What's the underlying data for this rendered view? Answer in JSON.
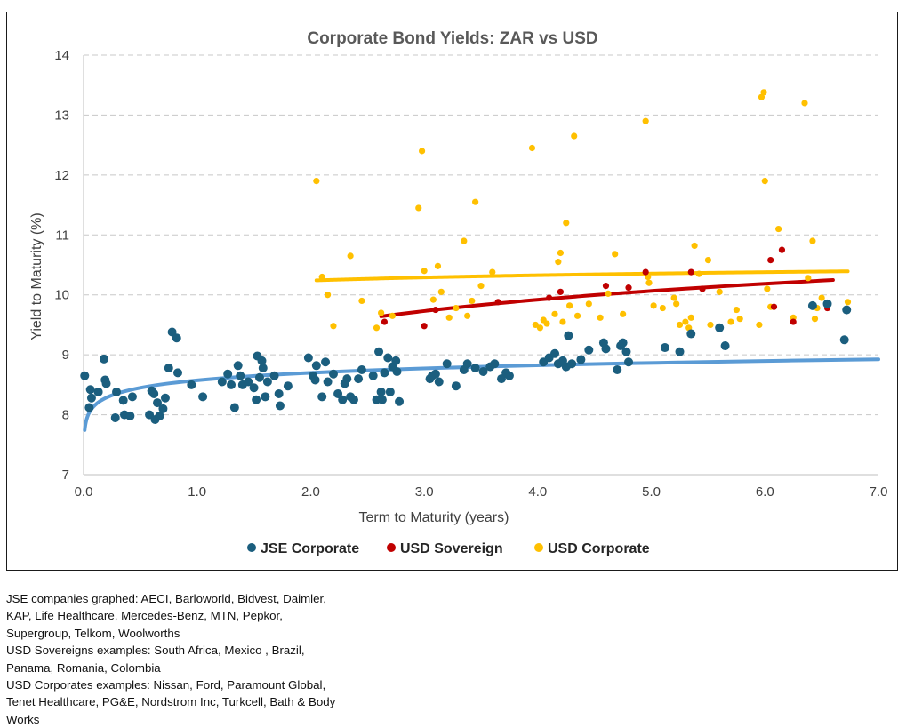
{
  "chart_data": {
    "type": "scatter",
    "title": "Corporate Bond Yields: ZAR vs USD",
    "xlabel": "Term to Maturity (years)",
    "ylabel": "Yield to Maturity (%)",
    "xlim": [
      0,
      7
    ],
    "ylim": [
      7,
      14
    ],
    "x_ticks": [
      "0.0",
      "1.0",
      "2.0",
      "3.0",
      "4.0",
      "5.0",
      "6.0",
      "7.0"
    ],
    "y_ticks": [
      "7",
      "8",
      "9",
      "10",
      "11",
      "12",
      "13",
      "14"
    ],
    "grid": "horizontal dashed",
    "legend_position": "bottom",
    "series": [
      {
        "name": "JSE Corporate",
        "color": "#1b5e7e",
        "points": [
          [
            0.01,
            8.65
          ],
          [
            0.05,
            8.12
          ],
          [
            0.06,
            8.42
          ],
          [
            0.07,
            8.28
          ],
          [
            0.13,
            8.38
          ],
          [
            0.18,
            8.93
          ],
          [
            0.19,
            8.58
          ],
          [
            0.2,
            8.52
          ],
          [
            0.28,
            7.95
          ],
          [
            0.29,
            8.38
          ],
          [
            0.35,
            8.24
          ],
          [
            0.36,
            8.0
          ],
          [
            0.41,
            7.98
          ],
          [
            0.43,
            8.3
          ],
          [
            0.58,
            8.0
          ],
          [
            0.6,
            8.4
          ],
          [
            0.62,
            8.35
          ],
          [
            0.63,
            7.92
          ],
          [
            0.65,
            8.2
          ],
          [
            0.67,
            7.98
          ],
          [
            0.7,
            8.1
          ],
          [
            0.72,
            8.28
          ],
          [
            0.75,
            8.78
          ],
          [
            0.78,
            9.38
          ],
          [
            0.82,
            9.28
          ],
          [
            0.83,
            8.7
          ],
          [
            0.95,
            8.5
          ],
          [
            1.05,
            8.3
          ],
          [
            1.22,
            8.55
          ],
          [
            1.27,
            8.68
          ],
          [
            1.3,
            8.5
          ],
          [
            1.33,
            8.12
          ],
          [
            1.36,
            8.82
          ],
          [
            1.38,
            8.65
          ],
          [
            1.4,
            8.5
          ],
          [
            1.45,
            8.55
          ],
          [
            1.5,
            8.45
          ],
          [
            1.52,
            8.25
          ],
          [
            1.53,
            8.98
          ],
          [
            1.55,
            8.62
          ],
          [
            1.57,
            8.9
          ],
          [
            1.58,
            8.78
          ],
          [
            1.6,
            8.3
          ],
          [
            1.62,
            8.55
          ],
          [
            1.68,
            8.65
          ],
          [
            1.72,
            8.35
          ],
          [
            1.73,
            8.15
          ],
          [
            1.8,
            8.48
          ],
          [
            1.98,
            8.95
          ],
          [
            2.02,
            8.65
          ],
          [
            2.04,
            8.58
          ],
          [
            2.05,
            8.82
          ],
          [
            2.1,
            8.3
          ],
          [
            2.13,
            8.88
          ],
          [
            2.15,
            8.55
          ],
          [
            2.2,
            8.68
          ],
          [
            2.24,
            8.35
          ],
          [
            2.28,
            8.25
          ],
          [
            2.3,
            8.52
          ],
          [
            2.32,
            8.6
          ],
          [
            2.35,
            8.3
          ],
          [
            2.38,
            8.25
          ],
          [
            2.42,
            8.6
          ],
          [
            2.45,
            8.75
          ],
          [
            2.55,
            8.65
          ],
          [
            2.58,
            8.25
          ],
          [
            2.6,
            9.05
          ],
          [
            2.62,
            8.38
          ],
          [
            2.63,
            8.25
          ],
          [
            2.65,
            8.7
          ],
          [
            2.68,
            8.95
          ],
          [
            2.7,
            8.38
          ],
          [
            2.72,
            8.8
          ],
          [
            2.75,
            8.9
          ],
          [
            2.76,
            8.72
          ],
          [
            2.78,
            8.22
          ],
          [
            3.05,
            8.6
          ],
          [
            3.07,
            8.65
          ],
          [
            3.1,
            8.68
          ],
          [
            3.13,
            8.55
          ],
          [
            3.2,
            8.85
          ],
          [
            3.28,
            8.48
          ],
          [
            3.35,
            8.75
          ],
          [
            3.38,
            8.85
          ],
          [
            3.45,
            8.78
          ],
          [
            3.52,
            8.72
          ],
          [
            3.58,
            8.8
          ],
          [
            3.62,
            8.85
          ],
          [
            3.68,
            8.6
          ],
          [
            3.72,
            8.7
          ],
          [
            3.75,
            8.65
          ],
          [
            4.05,
            8.88
          ],
          [
            4.1,
            8.95
          ],
          [
            4.15,
            9.02
          ],
          [
            4.18,
            8.85
          ],
          [
            4.22,
            8.9
          ],
          [
            4.25,
            8.8
          ],
          [
            4.27,
            9.32
          ],
          [
            4.3,
            8.85
          ],
          [
            4.38,
            8.92
          ],
          [
            4.45,
            9.08
          ],
          [
            4.58,
            9.2
          ],
          [
            4.6,
            9.1
          ],
          [
            4.7,
            8.75
          ],
          [
            4.73,
            9.15
          ],
          [
            4.75,
            9.2
          ],
          [
            4.78,
            9.05
          ],
          [
            4.8,
            8.88
          ],
          [
            5.12,
            9.12
          ],
          [
            5.25,
            9.05
          ],
          [
            5.35,
            9.35
          ],
          [
            5.6,
            9.45
          ],
          [
            5.65,
            9.15
          ],
          [
            6.42,
            9.82
          ],
          [
            6.55,
            9.85
          ],
          [
            6.7,
            9.25
          ],
          [
            6.72,
            9.75
          ]
        ]
      },
      {
        "name": "USD Sovereign",
        "color": "#c00000",
        "points": [
          [
            2.65,
            9.55
          ],
          [
            3.0,
            9.48
          ],
          [
            3.1,
            9.75
          ],
          [
            3.65,
            9.88
          ],
          [
            4.1,
            9.95
          ],
          [
            4.2,
            10.05
          ],
          [
            4.6,
            10.15
          ],
          [
            4.8,
            10.12
          ],
          [
            4.95,
            10.38
          ],
          [
            5.35,
            10.38
          ],
          [
            5.45,
            10.1
          ],
          [
            6.05,
            10.58
          ],
          [
            6.08,
            9.8
          ],
          [
            6.15,
            10.75
          ],
          [
            6.25,
            9.55
          ],
          [
            6.55,
            9.78
          ]
        ]
      },
      {
        "name": "USD Corporate",
        "color": "#ffc000",
        "points": [
          [
            2.05,
            11.9
          ],
          [
            2.1,
            10.3
          ],
          [
            2.15,
            10.0
          ],
          [
            2.2,
            9.48
          ],
          [
            2.35,
            10.65
          ],
          [
            2.45,
            9.9
          ],
          [
            2.58,
            9.45
          ],
          [
            2.62,
            9.7
          ],
          [
            2.72,
            9.65
          ],
          [
            2.95,
            11.45
          ],
          [
            2.98,
            12.4
          ],
          [
            3.0,
            10.4
          ],
          [
            3.08,
            9.92
          ],
          [
            3.12,
            10.48
          ],
          [
            3.15,
            10.05
          ],
          [
            3.22,
            9.62
          ],
          [
            3.28,
            9.78
          ],
          [
            3.35,
            10.9
          ],
          [
            3.38,
            9.65
          ],
          [
            3.42,
            9.9
          ],
          [
            3.45,
            11.55
          ],
          [
            3.5,
            10.15
          ],
          [
            3.6,
            10.38
          ],
          [
            3.95,
            12.45
          ],
          [
            3.98,
            9.5
          ],
          [
            4.02,
            9.45
          ],
          [
            4.05,
            9.58
          ],
          [
            4.08,
            9.52
          ],
          [
            4.15,
            9.68
          ],
          [
            4.18,
            10.55
          ],
          [
            4.2,
            10.7
          ],
          [
            4.22,
            9.55
          ],
          [
            4.25,
            11.2
          ],
          [
            4.28,
            9.82
          ],
          [
            4.32,
            12.65
          ],
          [
            4.35,
            9.65
          ],
          [
            4.45,
            9.85
          ],
          [
            4.55,
            9.62
          ],
          [
            4.62,
            10.02
          ],
          [
            4.68,
            10.68
          ],
          [
            4.75,
            9.68
          ],
          [
            4.95,
            12.9
          ],
          [
            4.97,
            10.3
          ],
          [
            4.98,
            10.2
          ],
          [
            5.02,
            9.82
          ],
          [
            5.1,
            9.78
          ],
          [
            5.2,
            9.95
          ],
          [
            5.22,
            9.85
          ],
          [
            5.25,
            9.5
          ],
          [
            5.3,
            9.55
          ],
          [
            5.33,
            9.45
          ],
          [
            5.35,
            9.62
          ],
          [
            5.38,
            10.82
          ],
          [
            5.42,
            10.35
          ],
          [
            5.5,
            10.58
          ],
          [
            5.52,
            9.5
          ],
          [
            5.6,
            10.05
          ],
          [
            5.7,
            9.55
          ],
          [
            5.75,
            9.75
          ],
          [
            5.78,
            9.6
          ],
          [
            5.95,
            9.5
          ],
          [
            5.97,
            13.3
          ],
          [
            5.99,
            13.38
          ],
          [
            6.0,
            11.9
          ],
          [
            6.02,
            10.1
          ],
          [
            6.05,
            9.8
          ],
          [
            6.12,
            11.1
          ],
          [
            6.25,
            9.62
          ],
          [
            6.35,
            13.2
          ],
          [
            6.38,
            10.28
          ],
          [
            6.42,
            10.9
          ],
          [
            6.44,
            9.6
          ],
          [
            6.46,
            9.78
          ],
          [
            6.5,
            9.95
          ],
          [
            6.73,
            9.88
          ]
        ]
      }
    ],
    "trendlines": [
      {
        "series": "JSE Corporate",
        "color": "#5b9bd5",
        "type": "logarithmic",
        "x_range": [
          0.01,
          7.0
        ]
      },
      {
        "series": "USD Sovereign",
        "color": "#c00000",
        "type": "logarithmic",
        "x_range": [
          2.62,
          6.6
        ]
      },
      {
        "series": "USD Corporate",
        "color": "#ffc000",
        "type": "logarithmic",
        "x_range": [
          2.05,
          6.73
        ]
      }
    ]
  },
  "notes": [
    "JSE companies graphed: AECI, Barloworld, Bidvest, Daimler,",
    "KAP, Life Healthcare, Mercedes-Benz, MTN, Pepkor,",
    "Supergroup, Telkom, Woolworths",
    "USD Sovereigns examples: South Africa, Mexico , Brazil,",
    "Panama, Romania, Colombia",
    "USD Corporates examples: Nissan, Ford, Paramount Global,",
    "Tenet Healthcare, PG&E, Nordstrom Inc, Turkcell, Bath & Body",
    "Works"
  ]
}
